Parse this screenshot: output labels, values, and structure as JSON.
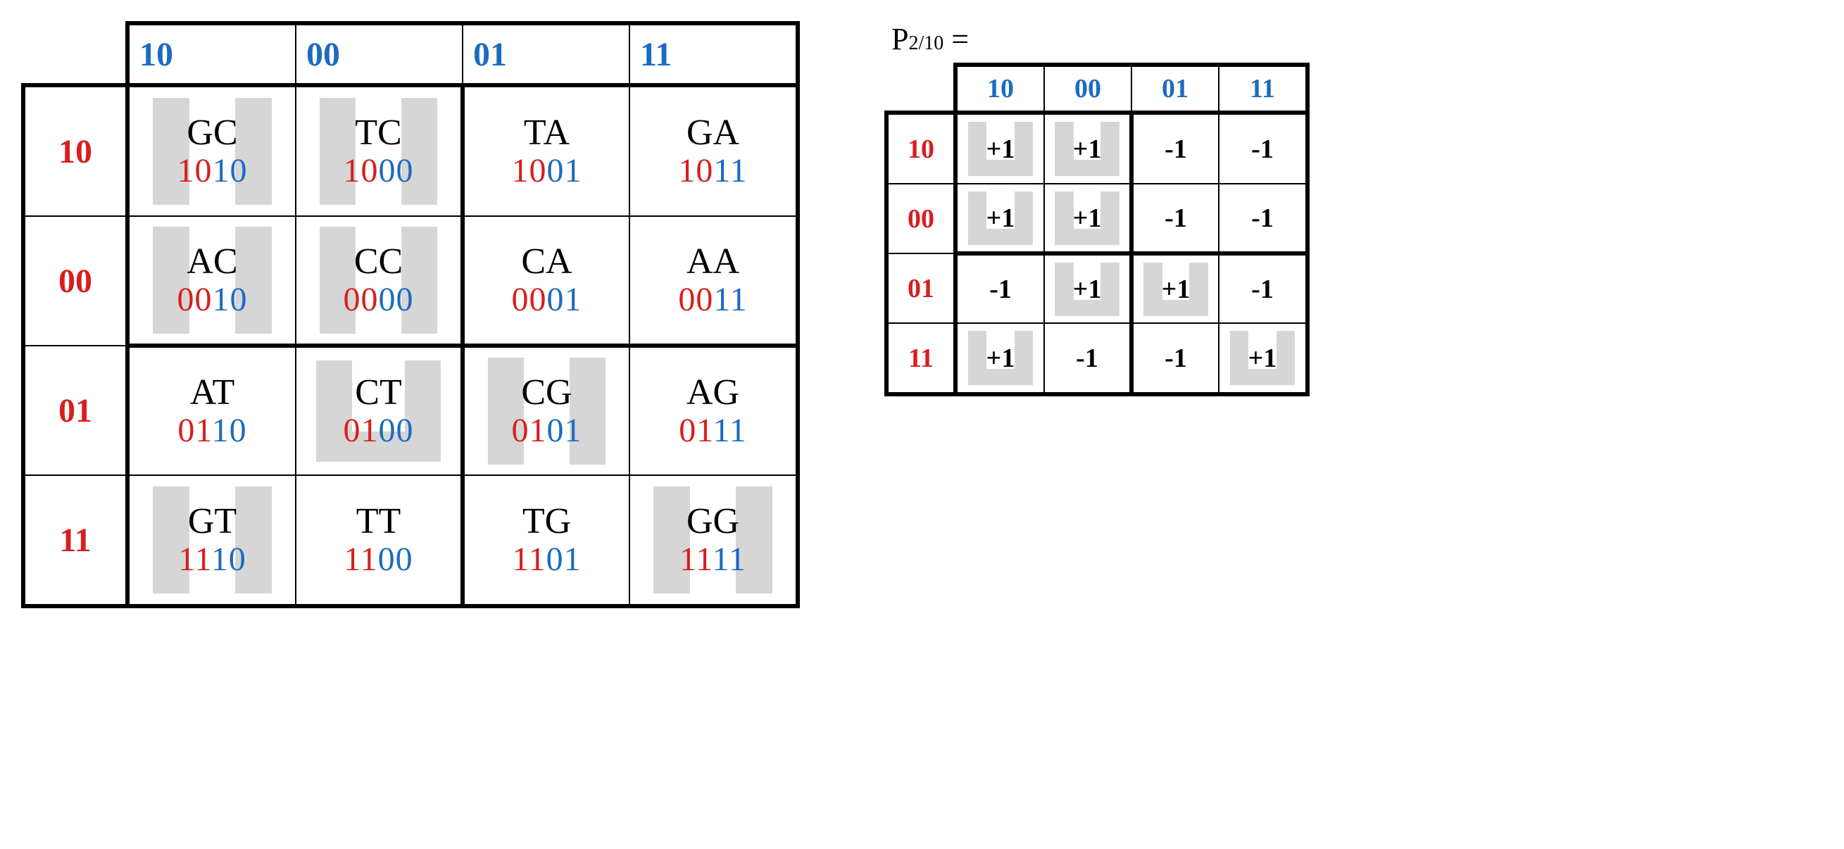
{
  "colors": {
    "blue": "#1c6bc0",
    "red": "#d81e1e",
    "grey": "#d6d6d6",
    "border": "#000000",
    "bg": "#ffffff"
  },
  "left": {
    "col_headers": [
      "10",
      "00",
      "01",
      "11"
    ],
    "row_headers": [
      "10",
      "00",
      "01",
      "11"
    ],
    "cells": [
      [
        {
          "pair": "GC",
          "r": "10",
          "b": "10",
          "hl": "cols"
        },
        {
          "pair": "TC",
          "r": "10",
          "b": "00",
          "hl": "cols"
        },
        {
          "pair": "TA",
          "r": "10",
          "b": "01",
          "hl": "none"
        },
        {
          "pair": "GA",
          "r": "10",
          "b": "11",
          "hl": "none"
        }
      ],
      [
        {
          "pair": "AC",
          "r": "00",
          "b": "10",
          "hl": "cols"
        },
        {
          "pair": "CC",
          "r": "00",
          "b": "00",
          "hl": "cols"
        },
        {
          "pair": "CA",
          "r": "00",
          "b": "01",
          "hl": "none"
        },
        {
          "pair": "AA",
          "r": "00",
          "b": "11",
          "hl": "none"
        }
      ],
      [
        {
          "pair": "AT",
          "r": "01",
          "b": "10",
          "hl": "none"
        },
        {
          "pair": "CT",
          "r": "01",
          "b": "00",
          "hl": "u"
        },
        {
          "pair": "CG",
          "r": "01",
          "b": "01",
          "hl": "cols"
        },
        {
          "pair": "AG",
          "r": "01",
          "b": "11",
          "hl": "none"
        }
      ],
      [
        {
          "pair": "GT",
          "r": "11",
          "b": "10",
          "hl": "cols"
        },
        {
          "pair": "TT",
          "r": "11",
          "b": "00",
          "hl": "none"
        },
        {
          "pair": "TG",
          "r": "11",
          "b": "01",
          "hl": "none"
        },
        {
          "pair": "GG",
          "r": "11",
          "b": "11",
          "hl": "cols"
        }
      ]
    ]
  },
  "right": {
    "title_main": "P",
    "title_sub": "2/10",
    "title_eq": " =",
    "col_headers": [
      "10",
      "00",
      "01",
      "11"
    ],
    "row_headers": [
      "10",
      "00",
      "01",
      "11"
    ],
    "cells": [
      [
        {
          "v": "+1",
          "hl": "u"
        },
        {
          "v": "+1",
          "hl": "u"
        },
        {
          "v": "-1",
          "hl": "none"
        },
        {
          "v": "-1",
          "hl": "none"
        }
      ],
      [
        {
          "v": "+1",
          "hl": "u"
        },
        {
          "v": "+1",
          "hl": "u"
        },
        {
          "v": "-1",
          "hl": "none"
        },
        {
          "v": "-1",
          "hl": "none"
        }
      ],
      [
        {
          "v": "-1",
          "hl": "none"
        },
        {
          "v": "+1",
          "hl": "u"
        },
        {
          "v": "+1",
          "hl": "u"
        },
        {
          "v": "-1",
          "hl": "none"
        }
      ],
      [
        {
          "v": "+1",
          "hl": "u"
        },
        {
          "v": "-1",
          "hl": "none"
        },
        {
          "v": "-1",
          "hl": "none"
        },
        {
          "v": "+1",
          "hl": "u"
        }
      ]
    ]
  }
}
